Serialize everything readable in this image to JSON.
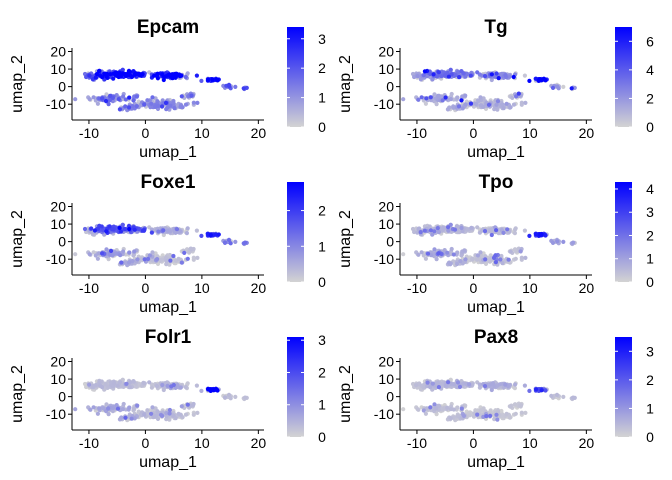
{
  "chart_data": [
    {
      "type": "scatter",
      "title": "Epcam",
      "xlabel": "umap_1",
      "ylabel": "umap_2",
      "xlim": [
        -13,
        21
      ],
      "ylim": [
        -19,
        22
      ],
      "xticks": [
        -10,
        0,
        10,
        20
      ],
      "yticks": [
        -10,
        0,
        10,
        20
      ],
      "colorbar": {
        "min": 0,
        "max": 3.4,
        "ticks": [
          0,
          1,
          2,
          3
        ],
        "low_color": "#d3d3d3",
        "high_color": "#0000ff"
      },
      "expression_profile": {
        "ant": 3.0,
        "aside": 1.8,
        "mid": 3.0,
        "lower": 1.2,
        "bottom": 1.0,
        "right": 2.8,
        "farright": 1.6,
        "noise": 0.9
      }
    },
    {
      "type": "scatter",
      "title": "Tg",
      "xlabel": "umap_1",
      "ylabel": "umap_2",
      "xlim": [
        -13,
        21
      ],
      "ylim": [
        -19,
        22
      ],
      "xticks": [
        -10,
        0,
        10,
        20
      ],
      "yticks": [
        -10,
        0,
        10,
        20
      ],
      "colorbar": {
        "min": 0,
        "max": 7,
        "ticks": [
          0,
          2,
          4,
          6
        ],
        "low_color": "#d3d3d3",
        "high_color": "#0000ff"
      },
      "expression_profile": {
        "ant": 2.5,
        "aside": 1.5,
        "mid": 2.0,
        "lower": 1.2,
        "bottom": 1.0,
        "right": 5.5,
        "farright": 1.5,
        "noise": 1.5
      }
    },
    {
      "type": "scatter",
      "title": "Foxe1",
      "xlabel": "umap_1",
      "ylabel": "umap_2",
      "xlim": [
        -13,
        21
      ],
      "ylim": [
        -19,
        22
      ],
      "xticks": [
        -10,
        0,
        10,
        20
      ],
      "yticks": [
        -10,
        0,
        10,
        20
      ],
      "colorbar": {
        "min": 0,
        "max": 2.8,
        "ticks": [
          0,
          1,
          2
        ],
        "low_color": "#d3d3d3",
        "high_color": "#0000ff"
      },
      "expression_profile": {
        "ant": 1.4,
        "aside": 0.4,
        "mid": 0.4,
        "lower": 0.6,
        "bottom": 0.2,
        "right": 1.8,
        "farright": 1.0,
        "noise": 0.8
      }
    },
    {
      "type": "scatter",
      "title": "Tpo",
      "xlabel": "umap_1",
      "ylabel": "umap_2",
      "xlim": [
        -13,
        21
      ],
      "ylim": [
        -19,
        22
      ],
      "xticks": [
        -10,
        0,
        10,
        20
      ],
      "yticks": [
        -10,
        0,
        10,
        20
      ],
      "colorbar": {
        "min": 0,
        "max": 4.3,
        "ticks": [
          0,
          1,
          2,
          3,
          4
        ],
        "low_color": "#d3d3d3",
        "high_color": "#0000ff"
      },
      "expression_profile": {
        "ant": 0.5,
        "aside": 0.5,
        "mid": 0.4,
        "lower": 0.6,
        "bottom": 0.3,
        "right": 2.8,
        "farright": 1.0,
        "noise": 0.9
      }
    },
    {
      "type": "scatter",
      "title": "Folr1",
      "xlabel": "umap_1",
      "ylabel": "umap_2",
      "xlim": [
        -13,
        21
      ],
      "ylim": [
        -19,
        22
      ],
      "xticks": [
        -10,
        0,
        10,
        20
      ],
      "yticks": [
        -10,
        0,
        10,
        20
      ],
      "colorbar": {
        "min": 0,
        "max": 3.1,
        "ticks": [
          0,
          1,
          2,
          3
        ],
        "low_color": "#d3d3d3",
        "high_color": "#0000ff"
      },
      "expression_profile": {
        "ant": 0.3,
        "aside": 0.3,
        "mid": 0.3,
        "lower": 0.5,
        "bottom": 0.3,
        "right": 2.7,
        "farright": 0.3,
        "noise": 0.7
      }
    },
    {
      "type": "scatter",
      "title": "Pax8",
      "xlabel": "umap_1",
      "ylabel": "umap_2",
      "xlim": [
        -13,
        21
      ],
      "ylim": [
        -19,
        22
      ],
      "xticks": [
        -10,
        0,
        10,
        20
      ],
      "yticks": [
        -10,
        0,
        10,
        20
      ],
      "colorbar": {
        "min": 0,
        "max": 3.5,
        "ticks": [
          0,
          1,
          2,
          3
        ],
        "low_color": "#d3d3d3",
        "high_color": "#0000ff"
      },
      "expression_profile": {
        "ant": 0.4,
        "aside": 0.3,
        "mid": 0.5,
        "lower": 0.3,
        "bottom": 0.2,
        "right": 1.5,
        "farright": 0.3,
        "noise": 0.8
      }
    }
  ]
}
